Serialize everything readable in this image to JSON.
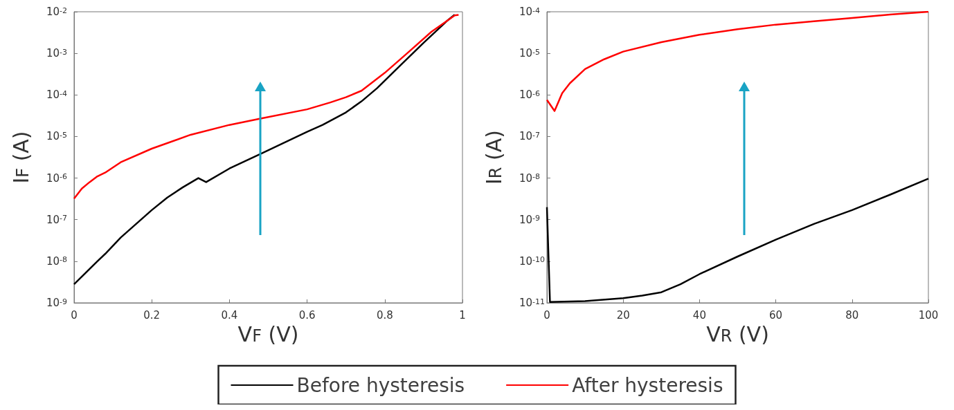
{
  "chart_data": [
    {
      "type": "line",
      "xlabel": "V$_{F}$ (V)",
      "ylabel": "I$_{F}$ (A)",
      "log": "y",
      "xlim": [
        0,
        1
      ],
      "xticks": [
        0,
        0.2,
        0.4,
        0.6,
        0.8,
        1
      ],
      "ylim": [
        1e-09,
        0.01
      ],
      "yticks": [
        {
          "value": 1e-09,
          "label": "10$^{-9}$"
        },
        {
          "value": 1e-08,
          "label": "10$^{-8}$"
        },
        {
          "value": 1e-07,
          "label": "10$^{-7}$"
        },
        {
          "value": 1e-06,
          "label": "10$^{-6}$"
        },
        {
          "value": 1e-05,
          "label": "10$^{-5}$"
        },
        {
          "value": 0.0001,
          "label": "10$^{-4}$"
        },
        {
          "value": 0.001,
          "label": "10$^{-3}$"
        },
        {
          "value": 0.01,
          "label": "10$^{-2}$"
        }
      ],
      "legend": "bottom",
      "series": [
        {
          "name": "Before hysteresis",
          "color": "#000000",
          "x": [
            0,
            0.06,
            0.08,
            0.12,
            0.2,
            0.24,
            0.28,
            0.32,
            0.34,
            0.4,
            0.48,
            0.6,
            0.64,
            0.7,
            0.74,
            0.78,
            0.84,
            0.9,
            0.96,
            0.98
          ],
          "values": [
            2.8e-09,
            1e-08,
            1.5e-08,
            3.7e-08,
            1.7e-07,
            3.4e-07,
            6e-07,
            1e-06,
            8e-07,
            1.7e-06,
            3.8e-06,
            1.3e-05,
            1.9e-05,
            3.8e-05,
            7e-05,
            0.000145,
            0.00051,
            0.0018,
            0.006,
            0.0085
          ]
        },
        {
          "name": "After hysteresis",
          "color": "#ff0000",
          "x": [
            0,
            0.02,
            0.04,
            0.06,
            0.08,
            0.12,
            0.2,
            0.3,
            0.4,
            0.48,
            0.6,
            0.66,
            0.7,
            0.74,
            0.8,
            0.86,
            0.92,
            0.96,
            0.98,
            0.99
          ],
          "values": [
            3.2e-07,
            5.6e-07,
            8e-07,
            1.1e-06,
            1.35e-06,
            2.4e-06,
            5.1e-06,
            1.1e-05,
            1.9e-05,
            2.7e-05,
            4.5e-05,
            6.6e-05,
            8.8e-05,
            0.000126,
            0.00034,
            0.00105,
            0.0033,
            0.006,
            0.0082,
            0.0084
          ]
        }
      ]
    },
    {
      "type": "line",
      "xlabel": "V$_{R}$ (V)",
      "ylabel": "I$_{R}$ (A)",
      "log": "y",
      "xlim": [
        0,
        100
      ],
      "xticks": [
        0,
        20,
        40,
        60,
        80,
        100
      ],
      "ylim": [
        1e-11,
        0.0001
      ],
      "yticks": [
        {
          "value": 1e-11,
          "label": "10$^{-11}$"
        },
        {
          "value": 1e-10,
          "label": "10$^{-10}$"
        },
        {
          "value": 1e-09,
          "label": "10$^{-9}$"
        },
        {
          "value": 1e-08,
          "label": "10$^{-8}$"
        },
        {
          "value": 1e-07,
          "label": "10$^{-7}$"
        },
        {
          "value": 1e-06,
          "label": "10$^{-6}$"
        },
        {
          "value": 1e-05,
          "label": "10$^{-5}$"
        },
        {
          "value": 0.0001,
          "label": "10$^{-4}$"
        }
      ],
      "series": [
        {
          "color": "#000000",
          "x": [
            0,
            0.8,
            10,
            20,
            25,
            30,
            35,
            40,
            50,
            60,
            70,
            80,
            90,
            100
          ],
          "values": [
            2e-09,
            1.05e-11,
            1.1e-11,
            1.3e-11,
            1.5e-11,
            1.8e-11,
            2.8e-11,
            4.9e-11,
            1.3e-10,
            3.3e-10,
            7.9e-10,
            1.7e-09,
            4e-09,
            9.7e-09
          ]
        },
        {
          "color": "#ff0000",
          "x": [
            0,
            2,
            4,
            6,
            10,
            15,
            20,
            30,
            40,
            50,
            60,
            70,
            80,
            90,
            100
          ],
          "values": [
            7.6e-07,
            4.1e-07,
            1.1e-06,
            1.9e-06,
            4.2e-06,
            7.2e-06,
            1.1e-05,
            1.85e-05,
            2.8e-05,
            3.8e-05,
            4.9e-05,
            5.9e-05,
            7.1e-05,
            8.6e-05,
            0.0001
          ]
        }
      ]
    }
  ]
}
